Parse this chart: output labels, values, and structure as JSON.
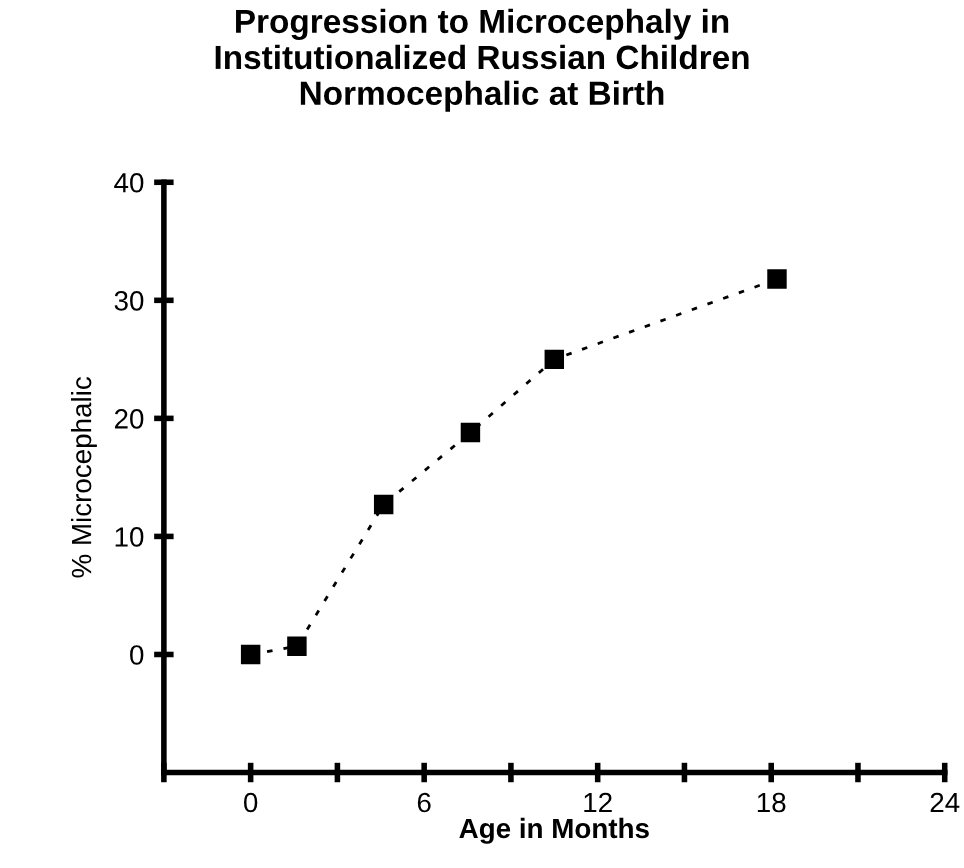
{
  "chart_data": {
    "type": "line",
    "title": "Progression to Microcephaly in\nInstitutionalized Russian Children\nNormocephalic at Birth",
    "xlabel": "Age in Months",
    "ylabel": "% Microcephalic",
    "x": [
      0,
      1.6,
      4.6,
      7.6,
      10.5,
      18.2
    ],
    "series": [
      {
        "color": "#000000",
        "values": [
          0,
          0.7,
          12.7,
          18.8,
          25,
          31.8
        ]
      }
    ],
    "marker": "square",
    "line_style": "dashed",
    "grid": false,
    "legend": false,
    "xlim": [
      -3,
      24
    ],
    "xticks": [
      {
        "value": -3,
        "label": null
      },
      0,
      {
        "value": 3,
        "label": null
      },
      6,
      {
        "value": 9,
        "label": null
      },
      12,
      {
        "value": 15,
        "label": null
      },
      18,
      {
        "value": 21,
        "label": null
      },
      24
    ],
    "ylim": [
      -10,
      40
    ],
    "yticks": [
      0,
      10,
      20,
      30,
      40
    ]
  }
}
